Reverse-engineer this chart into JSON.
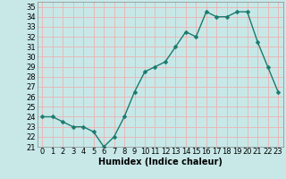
{
  "title": "",
  "xlabel": "Humidex (Indice chaleur)",
  "ylabel": "",
  "x_values": [
    0,
    1,
    2,
    3,
    4,
    5,
    6,
    7,
    8,
    9,
    10,
    11,
    12,
    13,
    14,
    15,
    16,
    17,
    18,
    19,
    20,
    21,
    22,
    23
  ],
  "y_values": [
    24,
    24,
    23.5,
    23,
    23,
    22.5,
    21,
    22,
    24,
    26.5,
    28.5,
    29,
    29.5,
    31,
    32.5,
    32,
    34.5,
    34,
    34,
    34.5,
    34.5,
    31.5,
    29,
    26.5
  ],
  "line_color": "#1a7a6e",
  "marker": "D",
  "marker_size": 2.5,
  "bg_color": "#c8e8e8",
  "grid_color": "#e8b8b8",
  "ylim": [
    21,
    35.5
  ],
  "xlim": [
    -0.5,
    23.5
  ],
  "yticks": [
    21,
    22,
    23,
    24,
    25,
    26,
    27,
    28,
    29,
    30,
    31,
    32,
    33,
    34,
    35
  ],
  "xticks": [
    0,
    1,
    2,
    3,
    4,
    5,
    6,
    7,
    8,
    9,
    10,
    11,
    12,
    13,
    14,
    15,
    16,
    17,
    18,
    19,
    20,
    21,
    22,
    23
  ],
  "tick_fontsize": 6.0,
  "xlabel_fontsize": 7.0,
  "linewidth": 1.0
}
